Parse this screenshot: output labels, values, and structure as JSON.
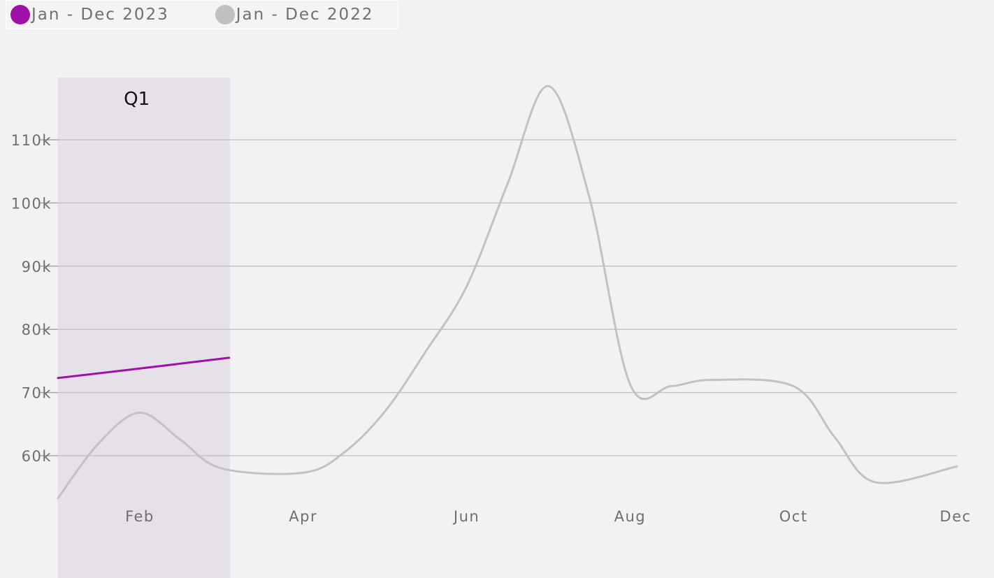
{
  "legend": [
    {
      "label": "Jan - Dec 2023",
      "color": "#a010a8"
    },
    {
      "label": "Jan - Dec 2022",
      "color": "#c0c0c0"
    }
  ],
  "chart_data": {
    "type": "line",
    "x_labels": [
      "Feb",
      "Apr",
      "Jun",
      "Aug",
      "Oct",
      "Dec"
    ],
    "y_ticks": [
      {
        "value": 60000,
        "label": "60k"
      },
      {
        "value": 70000,
        "label": "70k"
      },
      {
        "value": 80000,
        "label": "80k"
      },
      {
        "value": 90000,
        "label": "90k"
      },
      {
        "value": 100000,
        "label": "100k"
      },
      {
        "value": 110000,
        "label": "110k"
      }
    ],
    "grid": true,
    "legend_position": "top-left",
    "band": {
      "label": "Q1",
      "from": 1,
      "to": 3,
      "color": "#e6e0e8"
    },
    "series": [
      {
        "name": "Jan - Dec 2023",
        "color": "#a010a8",
        "x": [
          1,
          2,
          3
        ],
        "values": [
          72300,
          73800,
          75500
        ]
      },
      {
        "name": "Jan - Dec 2022",
        "color": "#c2c2c2",
        "x": [
          1,
          1.5,
          2,
          2.5,
          3,
          4,
          4.5,
          5,
          5.5,
          6,
          6.5,
          7,
          7.5,
          8,
          8.5,
          9,
          10,
          10.5,
          11,
          12
        ],
        "values": [
          53300,
          62000,
          66800,
          62500,
          58000,
          57300,
          60500,
          67000,
          76500,
          86800,
          103000,
          118500,
          101000,
          71300,
          71000,
          72000,
          71000,
          63000,
          55800,
          58300
        ]
      }
    ]
  }
}
